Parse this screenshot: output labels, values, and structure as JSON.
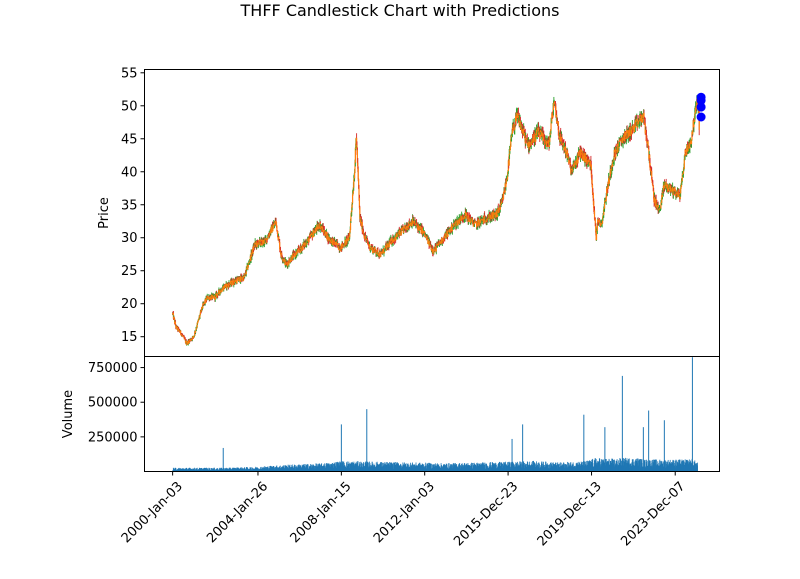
{
  "chart_data": {
    "type": "candlestick",
    "title": "THFF Candlestick Chart with Predictions",
    "price_panel": {
      "ylabel": "Price",
      "ylim": [
        12,
        55.5
      ],
      "yticks": [
        15,
        20,
        25,
        30,
        35,
        40,
        45,
        50,
        55
      ],
      "grid": false,
      "legend": "none",
      "up_color": "#2ca02c",
      "down_color": "#d62728",
      "body_color": "#ff7f0e",
      "prediction_color": "#0000ff",
      "series_approx_close": {
        "x": [
          "2000-01-03",
          "2000-03-01",
          "2000-06-01",
          "2000-09-01",
          "2001-01-01",
          "2001-06-01",
          "2001-09-01",
          "2002-01-01",
          "2002-06-01",
          "2003-01-01",
          "2003-06-01",
          "2003-12-01",
          "2004-06-01",
          "2004-12-01",
          "2005-03-01",
          "2005-06-01",
          "2005-09-01",
          "2006-01-01",
          "2006-06-01",
          "2007-01-01",
          "2007-06-01",
          "2008-01-01",
          "2008-06-01",
          "2008-09-01",
          "2008-10-01",
          "2008-11-01",
          "2008-12-01",
          "2009-03-01",
          "2009-06-01",
          "2009-12-01",
          "2010-06-01",
          "2010-12-01",
          "2011-06-01",
          "2011-12-01",
          "2012-06-01",
          "2012-12-01",
          "2013-06-01",
          "2013-12-01",
          "2014-06-01",
          "2014-12-01",
          "2015-06-01",
          "2015-09-01",
          "2015-12-01",
          "2016-03-01",
          "2016-06-01",
          "2016-12-01",
          "2017-06-01",
          "2017-12-01",
          "2018-03-01",
          "2018-06-01",
          "2018-10-01",
          "2019-01-01",
          "2019-06-01",
          "2019-12-01",
          "2020-03-01",
          "2020-04-01",
          "2020-06-01",
          "2020-09-01",
          "2021-01-01",
          "2021-06-01",
          "2021-12-01",
          "2022-06-01",
          "2022-09-01",
          "2022-12-01",
          "2023-03-01",
          "2023-06-01",
          "2023-12-01",
          "2024-03-01",
          "2024-06-01",
          "2024-09-01",
          "2024-11-01",
          "2025-01-01",
          "2025-02-01"
        ],
        "close": [
          18.5,
          16.5,
          15.5,
          14.0,
          15.0,
          19.5,
          21.0,
          21.0,
          22.5,
          23.5,
          24.0,
          29.0,
          29.5,
          32.5,
          27.5,
          26.0,
          27.0,
          28.0,
          29.5,
          32.0,
          30.0,
          28.5,
          30.0,
          40.5,
          45.5,
          39.0,
          33.0,
          30.0,
          28.5,
          27.5,
          29.5,
          31.0,
          32.5,
          31.0,
          28.0,
          30.0,
          32.0,
          33.5,
          32.0,
          33.0,
          33.5,
          35.0,
          39.0,
          46.0,
          48.5,
          44.0,
          46.0,
          44.0,
          51.0,
          45.5,
          43.0,
          40.0,
          43.0,
          41.0,
          30.0,
          33.0,
          32.0,
          37.0,
          42.5,
          45.0,
          46.5,
          48.5,
          43.0,
          36.0,
          34.0,
          38.0,
          37.0,
          36.5,
          43.0,
          44.5,
          48.0,
          51.0,
          46.5
        ]
      },
      "predictions": [
        {
          "x": "2025-03-01",
          "value": 51.3
        },
        {
          "x": "2025-03-01",
          "value": 50.8
        },
        {
          "x": "2025-03-01",
          "value": 49.8
        },
        {
          "x": "2025-03-01",
          "value": 48.3
        }
      ]
    },
    "volume_panel": {
      "ylabel": "Volume",
      "yticks": [
        250000,
        500000,
        750000
      ],
      "ytick_labels": [
        "250000",
        "500000",
        "750000"
      ],
      "ylim": [
        0,
        830000
      ],
      "bar_color": "#1f77b4",
      "series_approx": {
        "x": [
          "2000-01-03",
          "2002-06-01",
          "2003-10-01",
          "2005-06-01",
          "2007-03-01",
          "2008-01-15",
          "2009-10-01",
          "2011-06-01",
          "2013-01-01",
          "2014-06-01",
          "2016-03-01",
          "2017-03-01",
          "2018-06-01",
          "2019-09-01",
          "2020-03-01",
          "2021-01-01",
          "2021-06-01",
          "2022-03-01",
          "2022-06-01",
          "2023-06-01",
          "2024-01-01",
          "2024-06-01",
          "2024-10-01",
          "2025-01-01"
        ],
        "volume": [
          25000,
          25000,
          30000,
          45000,
          55000,
          70000,
          65000,
          60000,
          55000,
          60000,
          65000,
          70000,
          60000,
          70000,
          90000,
          85000,
          90000,
          90000,
          80000,
          80000,
          80000,
          80000,
          85000,
          60000
        ]
      },
      "spikes": [
        {
          "x": "2002-06-01",
          "value": 170000
        },
        {
          "x": "2008-01-15",
          "value": 340000
        },
        {
          "x": "2009-04-01",
          "value": 450000
        },
        {
          "x": "2016-03-01",
          "value": 235000
        },
        {
          "x": "2016-09-01",
          "value": 340000
        },
        {
          "x": "2019-08-01",
          "value": 410000
        },
        {
          "x": "2020-08-01",
          "value": 320000
        },
        {
          "x": "2021-06-01",
          "value": 690000
        },
        {
          "x": "2022-06-01",
          "value": 320000
        },
        {
          "x": "2022-09-01",
          "value": 440000
        },
        {
          "x": "2023-06-01",
          "value": 370000
        },
        {
          "x": "2024-10-01",
          "value": 825000
        }
      ]
    },
    "xaxis": {
      "tick_labels": [
        "2000-Jan-03",
        "2004-Jan-26",
        "2008-Jan-15",
        "2012-Jan-03",
        "2015-Dec-23",
        "2019-Dec-13",
        "2023-Dec-07"
      ],
      "tick_dates": [
        "2000-01-03",
        "2004-01-26",
        "2008-01-15",
        "2012-01-03",
        "2015-12-23",
        "2019-12-13",
        "2023-12-07"
      ],
      "range": [
        "1998-09-01",
        "2026-01-15"
      ]
    }
  }
}
